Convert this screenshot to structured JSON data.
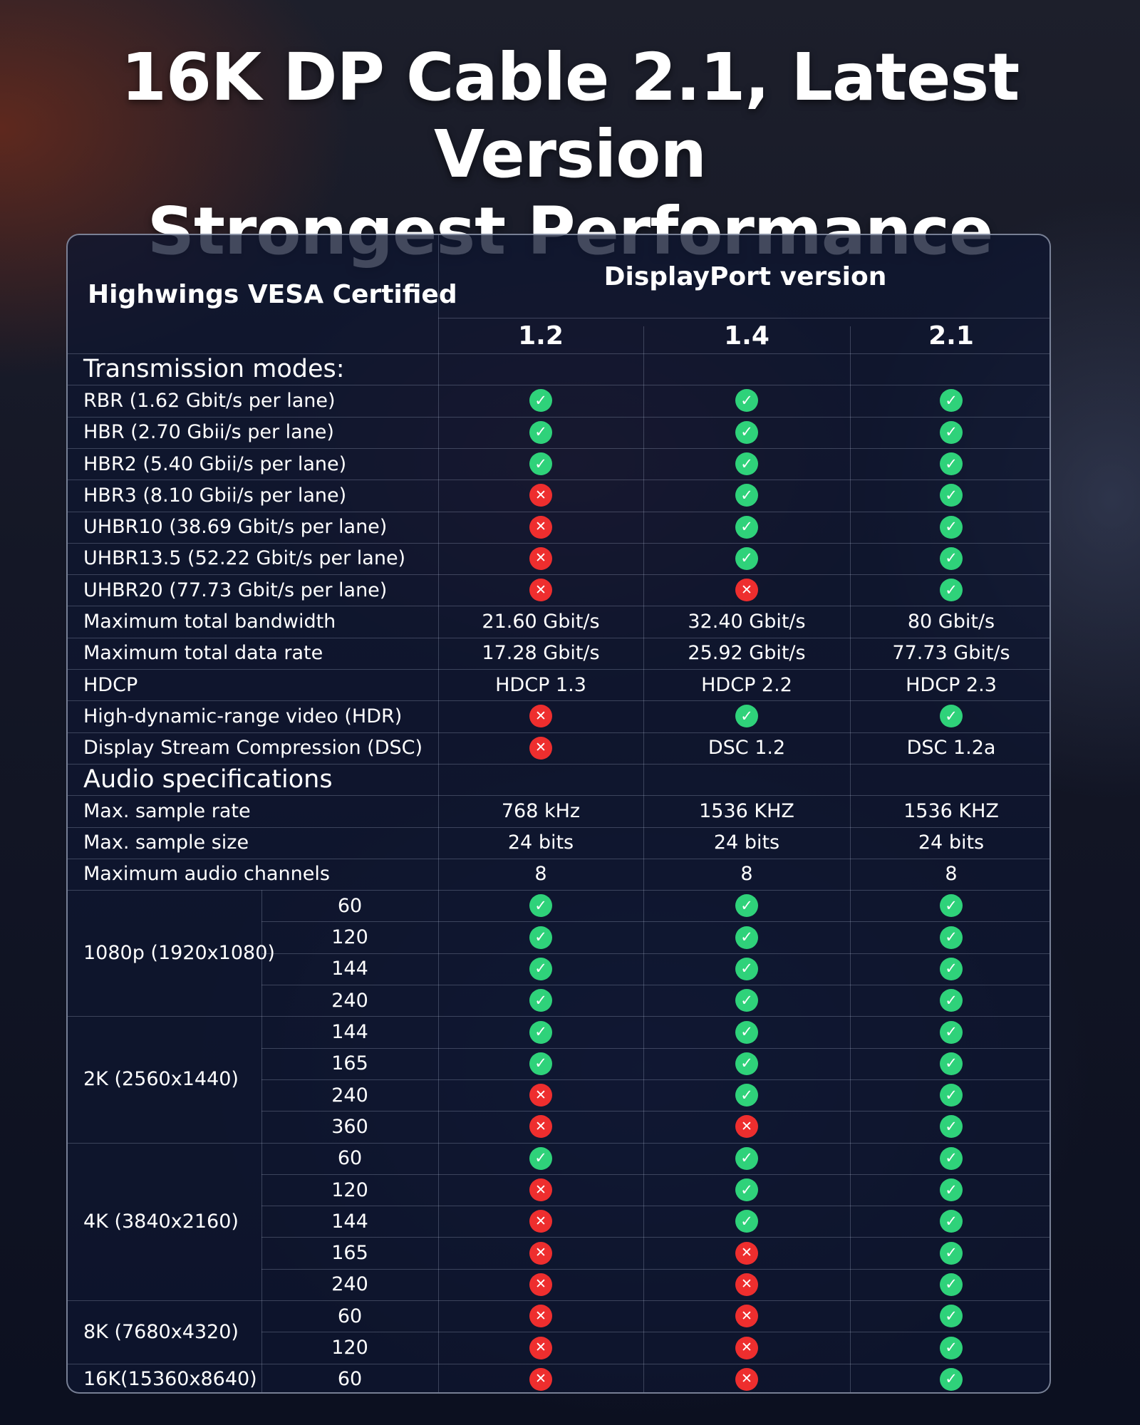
{
  "title": {
    "line1": "16K DP Cable 2.1, Latest Version",
    "line2": "Strongest Performance"
  },
  "header": {
    "brand_label": "Highwings VESA Certified",
    "group_label": "DisplayPort version",
    "versions": [
      "1.2",
      "1.4",
      "2.1"
    ]
  },
  "symbols": {
    "yes": "✓",
    "no": "✕",
    "yes_color": "#2fd27a",
    "no_color": "#ee2e2e"
  },
  "sections": {
    "transmission": "Transmission modes:",
    "audio": "Audio specifications"
  },
  "transmission_rows": [
    {
      "label": "RBR (1.62 Gbit/s per lane)",
      "values": [
        true,
        true,
        true
      ]
    },
    {
      "label": "HBR (2.70 Gbii/s per lane)",
      "values": [
        true,
        true,
        true
      ]
    },
    {
      "label": "HBR2 (5.40 Gbii/s per lane)",
      "values": [
        true,
        true,
        true
      ]
    },
    {
      "label": "HBR3 (8.10 Gbii/s per lane)",
      "values": [
        false,
        true,
        true
      ]
    },
    {
      "label": "UHBR10 (38.69 Gbit/s per lane)",
      "values": [
        false,
        true,
        true
      ]
    },
    {
      "label": "UHBR13.5 (52.22 Gbit/s per lane)",
      "values": [
        false,
        true,
        true
      ]
    },
    {
      "label": "UHBR20 (77.73 Gbit/s per lane)",
      "values": [
        false,
        false,
        true
      ]
    },
    {
      "label": "Maximum total bandwidth",
      "values": [
        "21.60 Gbit/s",
        "32.40 Gbit/s",
        "80 Gbit/s"
      ]
    },
    {
      "label": "Maximum total data rate",
      "values": [
        "17.28 Gbit/s",
        "25.92 Gbit/s",
        "77.73 Gbit/s"
      ]
    },
    {
      "label": "HDCP",
      "values": [
        "HDCP 1.3",
        "HDCP 2.2",
        "HDCP 2.3"
      ]
    },
    {
      "label": "High-dynamic-range video (HDR)",
      "values": [
        false,
        true,
        true
      ]
    },
    {
      "label": "Display Stream Compression (DSC)",
      "values": [
        false,
        "DSC 1.2",
        "DSC 1.2a"
      ]
    }
  ],
  "audio_rows": [
    {
      "label": "Max. sample rate",
      "values": [
        "768 kHz",
        "1536 KHZ",
        "1536 KHZ"
      ]
    },
    {
      "label": "Max. sample size",
      "values": [
        "24 bits",
        "24 bits",
        "24 bits"
      ]
    },
    {
      "label": "Maximum audio channels",
      "values": [
        "8",
        "8",
        "8"
      ]
    }
  ],
  "resolution_groups": [
    {
      "label": "1080p (1920x1080)",
      "rows": [
        {
          "hz": "60",
          "values": [
            true,
            true,
            true
          ]
        },
        {
          "hz": "120",
          "values": [
            true,
            true,
            true
          ]
        },
        {
          "hz": "144",
          "values": [
            true,
            true,
            true
          ]
        },
        {
          "hz": "240",
          "values": [
            true,
            true,
            true
          ]
        }
      ]
    },
    {
      "label": "2K (2560x1440)",
      "rows": [
        {
          "hz": "144",
          "values": [
            true,
            true,
            true
          ]
        },
        {
          "hz": "165",
          "values": [
            true,
            true,
            true
          ]
        },
        {
          "hz": "240",
          "values": [
            false,
            true,
            true
          ]
        },
        {
          "hz": "360",
          "values": [
            false,
            false,
            true
          ]
        }
      ]
    },
    {
      "label": "4K (3840x2160)",
      "rows": [
        {
          "hz": "60",
          "values": [
            true,
            true,
            true
          ]
        },
        {
          "hz": "120",
          "values": [
            false,
            true,
            true
          ]
        },
        {
          "hz": "144",
          "values": [
            false,
            true,
            true
          ]
        },
        {
          "hz": "165",
          "values": [
            false,
            false,
            true
          ]
        },
        {
          "hz": "240",
          "values": [
            false,
            false,
            true
          ]
        }
      ]
    },
    {
      "label": "8K (7680x4320)",
      "rows": [
        {
          "hz": "60",
          "values": [
            false,
            false,
            true
          ]
        },
        {
          "hz": "120",
          "values": [
            false,
            false,
            true
          ]
        }
      ]
    },
    {
      "label": "16K(15360x8640)",
      "rows": [
        {
          "hz": "60",
          "values": [
            false,
            false,
            true
          ]
        }
      ]
    }
  ]
}
